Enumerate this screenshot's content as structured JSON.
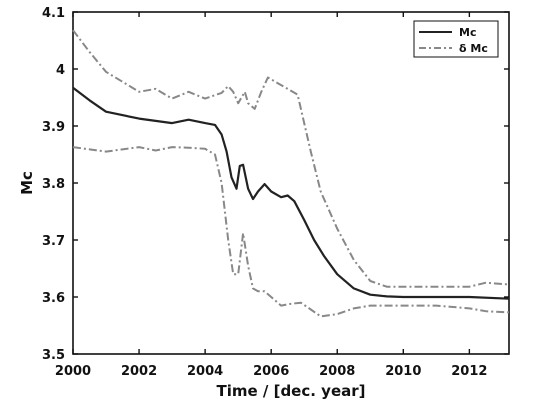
{
  "chart_data": {
    "type": "line",
    "xlabel": "Time / [dec. year]",
    "ylabel": "Mc",
    "xlim": [
      2000,
      2013.2
    ],
    "ylim": [
      3.5,
      4.1
    ],
    "xticks": [
      2000,
      2002,
      2004,
      2006,
      2008,
      2010,
      2012
    ],
    "yticks": [
      3.5,
      3.6,
      3.7,
      3.8,
      3.9,
      4,
      4.1
    ],
    "grid": false,
    "legend_position": "top-right",
    "series": [
      {
        "name": "Mc",
        "style": "solid",
        "color": "#222222",
        "x": [
          2000,
          2000.5,
          2001,
          2002,
          2003,
          2003.5,
          2004,
          2004.3,
          2004.5,
          2004.65,
          2004.8,
          2004.95,
          2005.05,
          2005.15,
          2005.3,
          2005.45,
          2005.6,
          2005.8,
          2006,
          2006.3,
          2006.5,
          2006.7,
          2007,
          2007.3,
          2007.6,
          2008,
          2008.5,
          2009,
          2009.5,
          2010,
          2011,
          2012,
          2013.2
        ],
        "y": [
          3.967,
          3.945,
          3.925,
          3.913,
          3.905,
          3.911,
          3.905,
          3.902,
          3.885,
          3.855,
          3.81,
          3.79,
          3.83,
          3.832,
          3.79,
          3.772,
          3.785,
          3.798,
          3.785,
          3.775,
          3.778,
          3.768,
          3.735,
          3.7,
          3.672,
          3.64,
          3.615,
          3.604,
          3.601,
          3.6,
          3.6,
          3.6,
          3.597
        ]
      },
      {
        "name": "δ Mc",
        "style": "dashdot",
        "color": "#888888",
        "x": [
          2000,
          2000.5,
          2001,
          2002,
          2002.5,
          2003,
          2003.5,
          2004,
          2004.5,
          2004.7,
          2004.85,
          2005,
          2005.2,
          2005.3,
          2005.5,
          2005.7,
          2005.9,
          2006.2,
          2006.5,
          2006.8,
          2007.2,
          2007.5,
          2008,
          2008.5,
          2009,
          2009.5,
          2010,
          2011,
          2012,
          2012.5,
          2013.2
        ],
        "y": [
          4.068,
          4.03,
          3.995,
          3.96,
          3.965,
          3.948,
          3.96,
          3.948,
          3.958,
          3.97,
          3.96,
          3.94,
          3.96,
          3.94,
          3.93,
          3.96,
          3.985,
          3.975,
          3.965,
          3.955,
          3.855,
          3.785,
          3.72,
          3.665,
          3.628,
          3.618,
          3.618,
          3.618,
          3.618,
          3.625,
          3.622
        ]
      },
      {
        "name": "",
        "style": "dashdot",
        "color": "#888888",
        "x": [
          2000,
          2001,
          2002,
          2002.5,
          2003,
          2003.5,
          2004,
          2004.3,
          2004.5,
          2004.7,
          2004.85,
          2005,
          2005.15,
          2005.3,
          2005.45,
          2005.6,
          2005.8,
          2006,
          2006.3,
          2006.6,
          2006.9,
          2007.2,
          2007.5,
          2008,
          2008.5,
          2009,
          2010,
          2011,
          2012,
          2012.5,
          2013.2
        ],
        "y": [
          3.863,
          3.855,
          3.863,
          3.857,
          3.863,
          3.862,
          3.86,
          3.85,
          3.8,
          3.7,
          3.64,
          3.64,
          3.712,
          3.655,
          3.615,
          3.61,
          3.61,
          3.6,
          3.585,
          3.588,
          3.59,
          3.578,
          3.566,
          3.57,
          3.58,
          3.585,
          3.585,
          3.585,
          3.58,
          3.575,
          3.573
        ]
      }
    ]
  }
}
